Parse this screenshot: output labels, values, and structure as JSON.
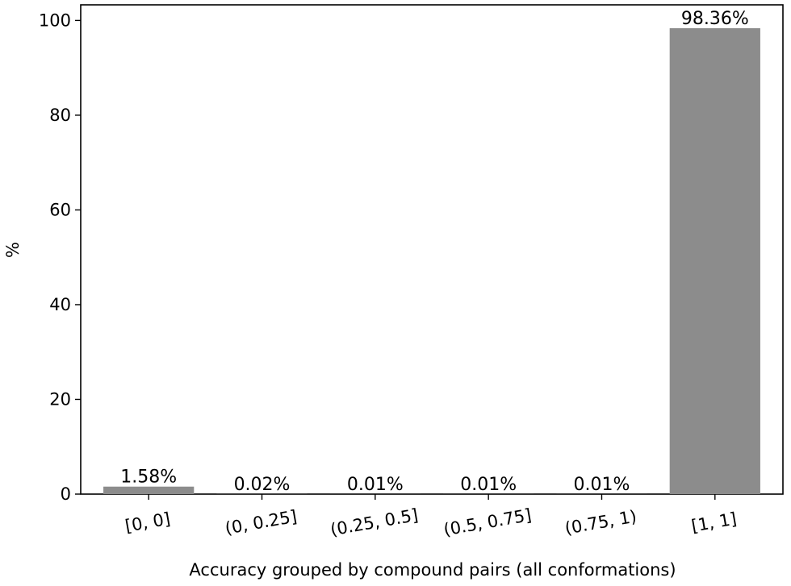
{
  "chart_data": {
    "type": "bar",
    "title": "",
    "xlabel": "Accuracy grouped by compound pairs (all conformations)",
    "ylabel": "%",
    "categories": [
      "[0, 0]",
      "(0, 0.25]",
      "(0.25, 0.5]",
      "(0.5, 0.75]",
      "(0.75, 1)",
      "[1, 1]"
    ],
    "values": [
      1.58,
      0.02,
      0.01,
      0.01,
      0.01,
      98.36
    ],
    "data_labels": [
      "1.58%",
      "0.02%",
      "0.01%",
      "0.01%",
      "0.01%",
      "98.36%"
    ],
    "ylim": [
      0,
      103.3
    ],
    "yticks": [
      0,
      20,
      40,
      60,
      80,
      100
    ],
    "ytick_labels": [
      "0",
      "20",
      "40",
      "60",
      "80",
      "100"
    ],
    "xtick_rotation_deg": -10,
    "grid": false,
    "bar_color": "#8c8c8c",
    "axis_color": "#000000"
  }
}
